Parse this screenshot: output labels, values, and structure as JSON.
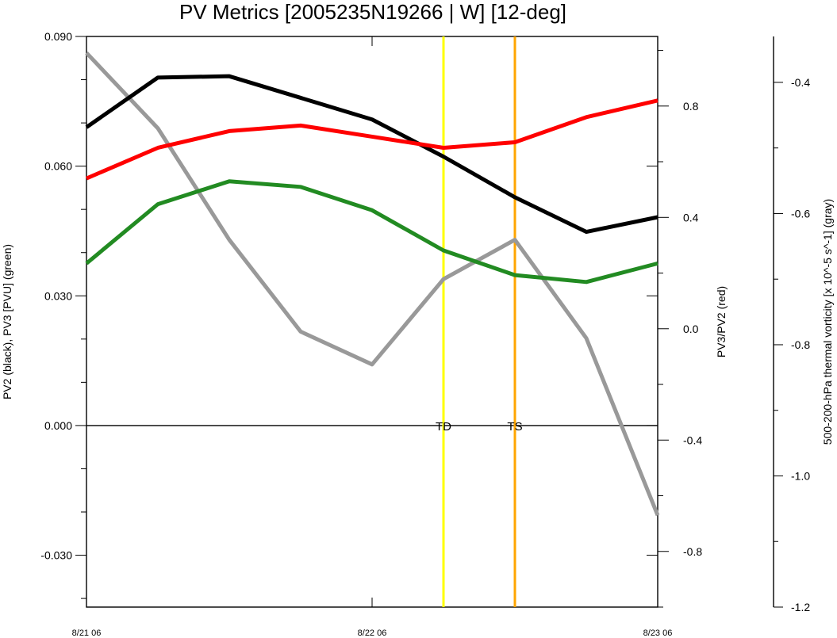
{
  "chart_data": {
    "type": "line",
    "title": "PV Metrics [2005235N19266 | W] [12-deg]",
    "x_tick_labels": [
      "8/21 06",
      "8/22 06",
      "8/23 06"
    ],
    "x": [
      0,
      6,
      12,
      18,
      24,
      30,
      36,
      42,
      48
    ],
    "x_units": "hours since 8/21 06",
    "xlim": [
      0,
      48
    ],
    "left_axis": {
      "label": "PV2 (black), PV3 [PVU] (green)",
      "ylim": [
        -0.042,
        0.09
      ],
      "ticks": [
        0.09,
        0.06,
        0.03,
        0.0,
        -0.03
      ],
      "tick_labels": [
        "0.090",
        "0.060",
        "0.030",
        "0.000",
        "-0.030"
      ]
    },
    "right_axis": {
      "label": "PV3/PV2 (red)",
      "ylim": [
        -1.0,
        1.05
      ],
      "ticks": [
        0.8,
        0.4,
        0.0,
        -0.4,
        -0.8
      ],
      "tick_labels": [
        "0.8",
        "0.4",
        "0.0",
        "-0.4",
        "-0.8"
      ]
    },
    "far_right_axis": {
      "label": "500-200-hPa thermal vorticity [x 10^-5 s^-1] (gray)",
      "ylim": [
        -1.2,
        -0.33
      ],
      "ticks": [
        -0.4,
        -0.6,
        -0.8,
        -1.0,
        -1.2
      ],
      "tick_labels": [
        "-0.4",
        "-0.6",
        "-0.8",
        "-1.0",
        "-1.2"
      ]
    },
    "series": [
      {
        "name": "PV2",
        "axis": "left",
        "color": "#000000",
        "values": [
          0.069,
          0.0805,
          0.0808,
          0.0758,
          0.0708,
          0.0622,
          0.0528,
          0.0448,
          0.0482
        ]
      },
      {
        "name": "PV3",
        "axis": "left",
        "color": "#228b22",
        "values": [
          0.0375,
          0.0512,
          0.0565,
          0.0552,
          0.0498,
          0.0405,
          0.0348,
          0.0332,
          0.0375
        ]
      },
      {
        "name": "PV3/PV2",
        "axis": "right",
        "color": "#ff0000",
        "values": [
          0.54,
          0.65,
          0.71,
          0.73,
          0.69,
          0.65,
          0.67,
          0.76,
          0.82
        ]
      },
      {
        "name": "thermal vorticity",
        "axis": "far_right",
        "color": "#999999",
        "values": [
          -0.355,
          -0.47,
          -0.64,
          -0.78,
          -0.83,
          -0.7,
          -0.64,
          -0.79,
          -1.06
        ]
      }
    ],
    "markers": [
      {
        "label": "TD",
        "x": 30,
        "color": "#ffff00"
      },
      {
        "label": "TS",
        "x": 36,
        "color": "#ffa500"
      }
    ],
    "grid": false
  }
}
